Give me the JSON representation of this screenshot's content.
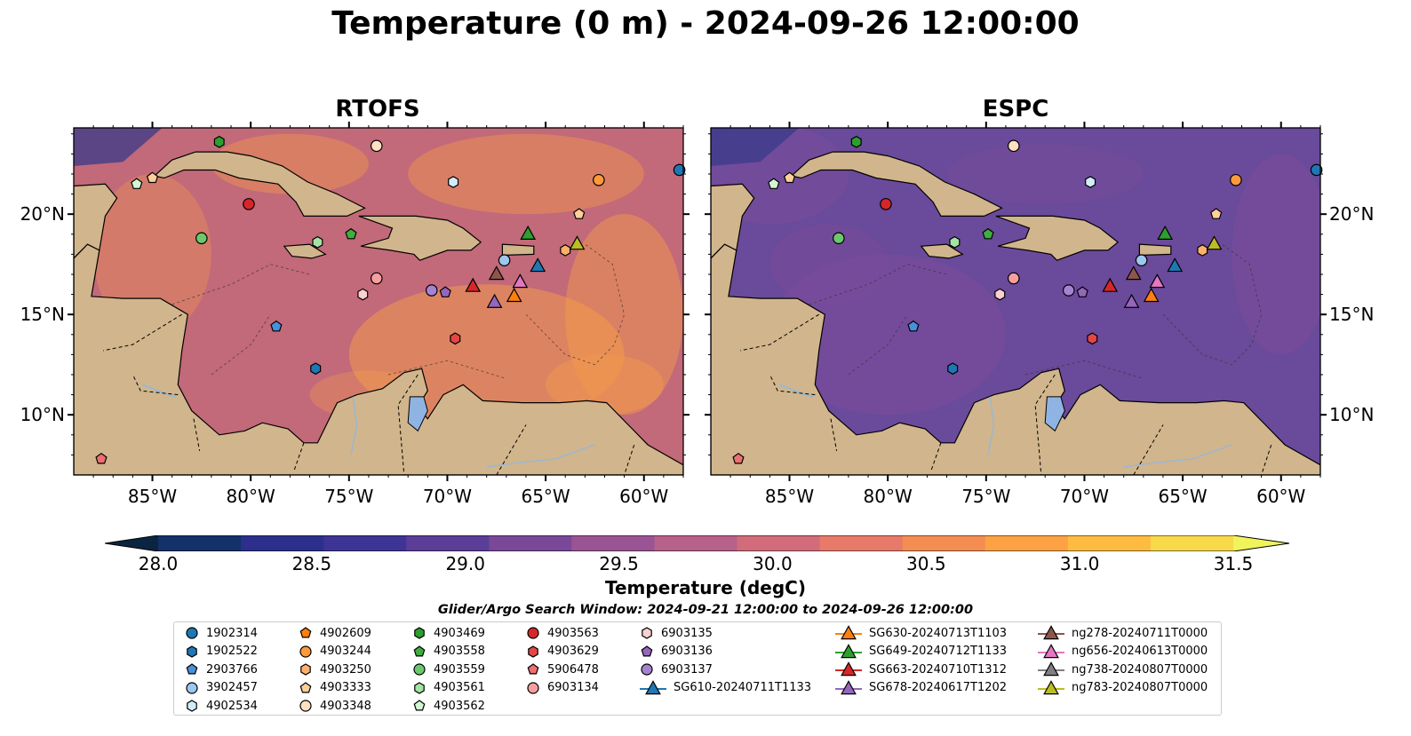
{
  "title": "Temperature (0 m) - 2024-09-26 12:00:00",
  "panels": [
    {
      "title": "RTOFS"
    },
    {
      "title": "ESPC"
    }
  ],
  "map": {
    "lon_range": [
      -89,
      -58
    ],
    "lat_range": [
      7,
      24.3
    ],
    "lon_ticks": [
      "85°W",
      "80°W",
      "75°W",
      "70°W",
      "65°W",
      "60°W"
    ],
    "lat_ticks": [
      "20°N",
      "15°N",
      "10°N"
    ],
    "colors": {
      "land": "#d1b58c",
      "lake": "#8fb4e3",
      "rtofs_sea": "#c2697a",
      "espc_sea": "#6a4a9a",
      "deep_pacific": "#1c2c44"
    }
  },
  "colorbar": {
    "label": "Temperature (degC)",
    "ticks": [
      "28.0",
      "28.5",
      "29.0",
      "29.5",
      "30.0",
      "30.5",
      "31.0",
      "31.5"
    ],
    "range": [
      28.0,
      31.5
    ],
    "colors": [
      "#0b2541",
      "#13316a",
      "#2d2f8c",
      "#3d3495",
      "#5b3e97",
      "#7a4898",
      "#9a5494",
      "#b8618a",
      "#d26c7a",
      "#e77a68",
      "#f38d52",
      "#fca244",
      "#fdbc41",
      "#f7d94a",
      "#f0f35c"
    ]
  },
  "search_window": "Glider/Argo Search Window: 2024-09-21 12:00:00 to 2024-09-26 12:00:00",
  "legend": [
    {
      "label": "1902314",
      "marker": "circle",
      "color": "#1f77b4"
    },
    {
      "label": "1902522",
      "marker": "hexagon",
      "color": "#1f77b4"
    },
    {
      "label": "2903766",
      "marker": "pentagon",
      "color": "#4a90d9"
    },
    {
      "label": "3902457",
      "marker": "circle",
      "color": "#9dc8ee"
    },
    {
      "label": "4902534",
      "marker": "hexagon",
      "color": "#d2ecfa"
    },
    {
      "label": "4902609",
      "marker": "pentagon",
      "color": "#ff7f0e"
    },
    {
      "label": "4903244",
      "marker": "circle",
      "color": "#ff9a3c"
    },
    {
      "label": "4903250",
      "marker": "hexagon",
      "color": "#ffb06a"
    },
    {
      "label": "4903333",
      "marker": "pentagon",
      "color": "#ffcf9a"
    },
    {
      "label": "4903348",
      "marker": "circle",
      "color": "#ffe1c2"
    },
    {
      "label": "4903469",
      "marker": "hexagon",
      "color": "#2ca02c"
    },
    {
      "label": "4903558",
      "marker": "pentagon",
      "color": "#3fae3f"
    },
    {
      "label": "4903559",
      "marker": "circle",
      "color": "#6cc86c"
    },
    {
      "label": "4903561",
      "marker": "hexagon",
      "color": "#a3e3a3"
    },
    {
      "label": "4903562",
      "marker": "pentagon",
      "color": "#d3f6d3"
    },
    {
      "label": "4903563",
      "marker": "circle",
      "color": "#d62728"
    },
    {
      "label": "4903629",
      "marker": "hexagon",
      "color": "#e24647"
    },
    {
      "label": "5906478",
      "marker": "pentagon",
      "color": "#ee6f70"
    },
    {
      "label": "6903134",
      "marker": "circle",
      "color": "#f59f9f"
    },
    {
      "label": "6903135",
      "marker": "hexagon",
      "color": "#fbd0d0"
    },
    {
      "label": "6903136",
      "marker": "pentagon",
      "color": "#9467bd"
    },
    {
      "label": "6903137",
      "marker": "circle",
      "color": "#a583d1"
    },
    {
      "label": "SG610-20240711T1133",
      "marker": "triangle-line",
      "color": "#1f77b4"
    },
    {
      "label": "SG630-20240713T1103",
      "marker": "triangle-line",
      "color": "#ff7f0e"
    },
    {
      "label": "SG649-20240712T1133",
      "marker": "triangle-line",
      "color": "#2ca02c"
    },
    {
      "label": "SG663-20240710T1312",
      "marker": "triangle-line",
      "color": "#d62728"
    },
    {
      "label": "SG678-20240617T1202",
      "marker": "triangle-line",
      "color": "#9467bd"
    },
    {
      "label": "ng278-20240711T0000",
      "marker": "triangle-line",
      "color": "#8c564b"
    },
    {
      "label": "ng656-20240613T0000",
      "marker": "triangle-line",
      "color": "#e377c2"
    },
    {
      "label": "ng738-20240807T0000",
      "marker": "triangle-line",
      "color": "#7f7f7f"
    },
    {
      "label": "ng783-20240807T0000",
      "marker": "triangle-line",
      "color": "#bcbd22"
    }
  ],
  "argo_positions": [
    {
      "id": "1902314",
      "lon": -58.2,
      "lat": 22.2
    },
    {
      "id": "4903563",
      "lon": -80.1,
      "lat": 20.5
    },
    {
      "id": "4903469",
      "lon": -81.6,
      "lat": 23.6
    },
    {
      "id": "4903562",
      "lon": -85.8,
      "lat": 21.5
    },
    {
      "id": "4903333",
      "lon": -85.0,
      "lat": 21.8
    },
    {
      "id": "4903348",
      "lon": -73.6,
      "lat": 23.4
    },
    {
      "id": "4902534",
      "lon": -69.7,
      "lat": 21.6
    },
    {
      "id": "4903244",
      "lon": -62.3,
      "lat": 21.7
    },
    {
      "id": "4903333",
      "lon": -63.3,
      "lat": 20.0
    },
    {
      "id": "4903559",
      "lon": -82.5,
      "lat": 18.8
    },
    {
      "id": "4903561",
      "lon": -76.6,
      "lat": 18.6
    },
    {
      "id": "4903558",
      "lon": -74.9,
      "lat": 19.0
    },
    {
      "id": "3902457",
      "lon": -67.1,
      "lat": 17.7
    },
    {
      "id": "4903250",
      "lon": -64.0,
      "lat": 18.2
    },
    {
      "id": "6903135",
      "lon": -74.3,
      "lat": 16.0
    },
    {
      "id": "6903134",
      "lon": -73.6,
      "lat": 16.8
    },
    {
      "id": "6903137",
      "lon": -70.8,
      "lat": 16.2
    },
    {
      "id": "6903136",
      "lon": -70.1,
      "lat": 16.1
    },
    {
      "id": "2903766",
      "lon": -78.7,
      "lat": 14.4
    },
    {
      "id": "1902522",
      "lon": -76.7,
      "lat": 12.3
    },
    {
      "id": "4903629",
      "lon": -69.6,
      "lat": 13.8
    },
    {
      "id": "5906478",
      "lon": -87.6,
      "lat": 7.8
    }
  ],
  "glider_positions": [
    {
      "id": "SG649-20240712T1133",
      "lon": -65.9,
      "lat": 19.0
    },
    {
      "id": "ng783-20240807T0000",
      "lon": -63.4,
      "lat": 18.5
    },
    {
      "id": "SG610-20240711T1133",
      "lon": -65.4,
      "lat": 17.4
    },
    {
      "id": "ng278-20240711T0000",
      "lon": -67.5,
      "lat": 17.0
    },
    {
      "id": "SG663-20240710T1312",
      "lon": -68.7,
      "lat": 16.4
    },
    {
      "id": "ng656-20240613T0000",
      "lon": -66.3,
      "lat": 16.6
    },
    {
      "id": "SG630-20240713T1103",
      "lon": -66.6,
      "lat": 15.9
    },
    {
      "id": "SG678-20240617T1202",
      "lon": -67.6,
      "lat": 15.6
    }
  ]
}
